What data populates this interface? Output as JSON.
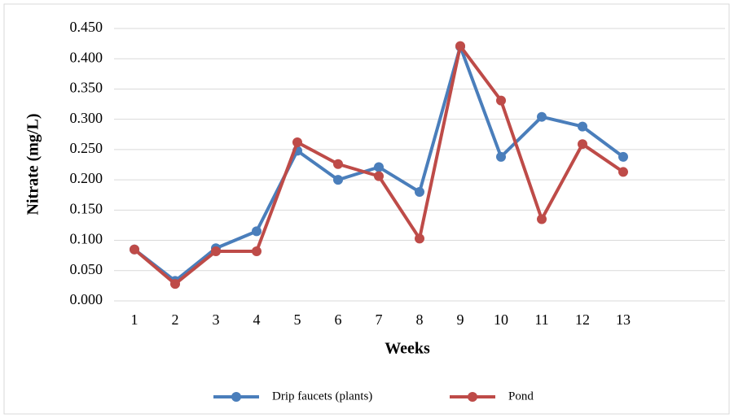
{
  "chart_data": {
    "type": "line",
    "xlabel": "Weeks",
    "ylabel": "Nitrate (mg/L)",
    "categories": [
      "1",
      "2",
      "3",
      "4",
      "5",
      "6",
      "7",
      "8",
      "9",
      "10",
      "11",
      "12",
      "13",
      null,
      null
    ],
    "series": [
      {
        "name": "Drip faucets (plants)",
        "color": "#4a7ebb",
        "values": [
          0.085,
          0.033,
          0.087,
          0.115,
          0.248,
          0.2,
          0.221,
          0.18,
          0.42,
          0.238,
          0.304,
          0.288,
          0.238,
          null,
          null
        ]
      },
      {
        "name": "Pond",
        "color": "#be4b48",
        "values": [
          0.085,
          0.028,
          0.082,
          0.082,
          0.262,
          0.226,
          0.206,
          0.103,
          0.421,
          0.331,
          0.135,
          0.259,
          0.213,
          null,
          null
        ]
      }
    ],
    "ylim": [
      0,
      0.45
    ],
    "yticks": [
      {
        "value": 0,
        "label": "0.000"
      },
      {
        "value": 0.05,
        "label": "0.050"
      },
      {
        "value": 0.1,
        "label": "0.100"
      },
      {
        "value": 0.15,
        "label": "0.150"
      },
      {
        "value": 0.2,
        "label": "0.200"
      },
      {
        "value": 0.25,
        "label": "0.250"
      },
      {
        "value": 0.3,
        "label": "0.300"
      },
      {
        "value": 0.35,
        "label": "0.350"
      },
      {
        "value": 0.4,
        "label": "0.400"
      },
      {
        "value": 0.45,
        "label": "0.450"
      }
    ],
    "grid": true,
    "legend": "bottom"
  }
}
